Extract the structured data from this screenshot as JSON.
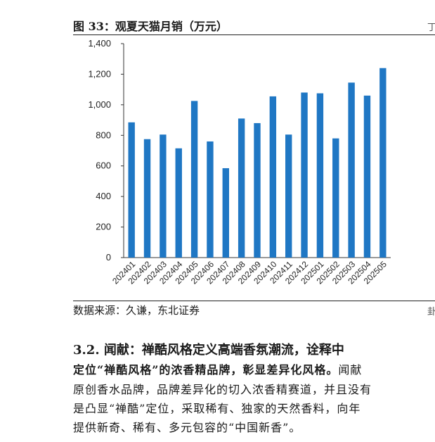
{
  "figure": {
    "title": "图 33：观夏天猫月销（万元）",
    "source": "数据来源：久谦，东北证券"
  },
  "chart_data": {
    "type": "bar",
    "title": "",
    "xlabel": "",
    "ylabel": "",
    "ylim": [
      0,
      1400
    ],
    "yticks": [
      0,
      200,
      400,
      600,
      800,
      1000,
      1200,
      1400
    ],
    "ytick_labels": [
      "0",
      "200",
      "400",
      "600",
      "800",
      "1,000",
      "1,200",
      "1,400"
    ],
    "categories": [
      "202401",
      "202402",
      "202403",
      "202404",
      "202405",
      "202406",
      "202407",
      "202408",
      "202409",
      "202410",
      "202411",
      "202412",
      "202501",
      "202502",
      "202503",
      "202504",
      "202505"
    ],
    "values": [
      885,
      775,
      805,
      715,
      1025,
      760,
      585,
      910,
      880,
      1055,
      805,
      1080,
      1075,
      780,
      1145,
      1060,
      1240
    ],
    "bar_color": "#1f77c4",
    "grid": false
  },
  "section": {
    "heading": "3.2.  闻献：禅酷风格定义高端香氛潮流，诠释中"
  },
  "paragraph": {
    "line1_bold": "定位“禅酷风格”的浓香精品牌，彰显差异化风格。",
    "line1_rest": "闻献",
    "line2": "原创香水品牌，品牌差异化的切入浓香精赛道，并且没有",
    "line3": "是凸显“禅酷”定位，采取稀有、独家的天然香料，向年",
    "line4": "提供新奇、稀有、多元包容的“中国新香”。"
  },
  "edge": {
    "top_mark": "丁",
    "bottom_mark": "卦"
  }
}
